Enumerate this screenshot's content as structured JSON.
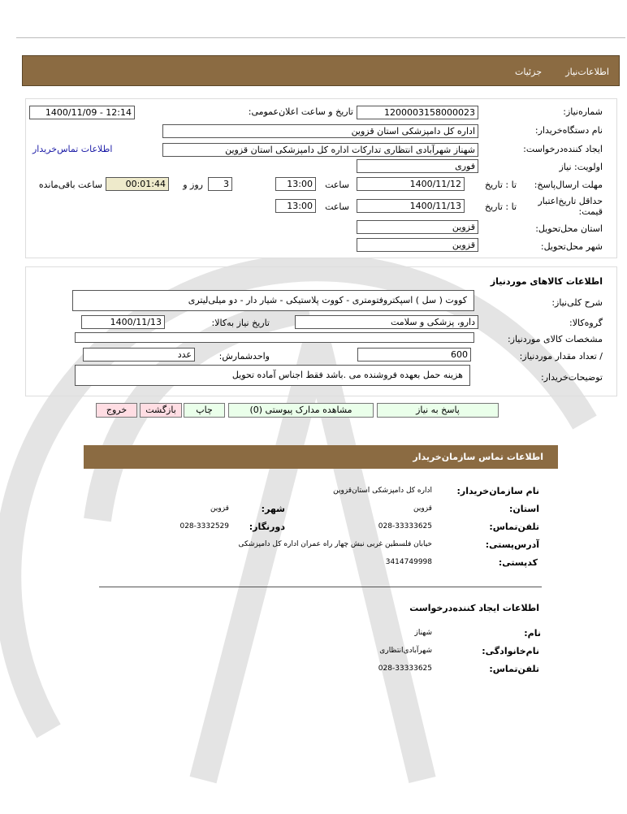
{
  "tabs": [
    "اطلاعات‌نیاز",
    "جزئیات"
  ],
  "need": {
    "number_label": "شماره‌نیاز:",
    "number": "1200003158000023",
    "announce_label": "تاریخ و ساعت اعلان‌عمومی:",
    "announce": "1400/11/09 - 12:14",
    "buyer_label": "نام دستگاه‌خریدار:",
    "buyer": "اداره کل دامپزشکی استان قزوین",
    "creator_label": "ایجاد کننده‌درخواست:",
    "creator": "شهناز شهرآبادی انتظاری تدارکات اداره کل دامپزشکی استان قزوین",
    "contact_link": "اطلاعات تماس‌خریدار",
    "priority_label": "اولویت: نیاز",
    "priority": "فوری",
    "deadline_label": "مهلت ارسال‌پاسخ:",
    "to_date": "تا : تاریخ",
    "deadline_date": "1400/11/12",
    "time_label": "ساعت",
    "deadline_time": "13:00",
    "days": "3",
    "days_label": "روز و",
    "remaining": "00:01:44",
    "remaining_label": "ساعت باقی‌مانده",
    "validity_label": "حداقل تاریخ‌اعتبار قیمت:",
    "validity_date": "1400/11/13",
    "validity_time": "13:00",
    "province_label": "استان محل‌تحویل:",
    "province": "قزوین",
    "city_label": "شهر محل‌تحویل:",
    "city": "قزوین"
  },
  "goods": {
    "title": "اطلاعات کالاهای موردنیاز",
    "desc_label": "شرح کلی‌نیاز:",
    "desc": "کووت ( سل ) اسپکتروفتومتری - کووت پلاستیکی - شیار دار - دو میلی‌لیتری",
    "group_label": "گروه‌کالا:",
    "group": "دارو، پزشکی و سلامت",
    "need_date_label": "تاریخ نیاز به‌کالا:",
    "need_date": "1400/11/13",
    "spec_label": "مشخصات کالای مورد‌نیاز:",
    "spec": "",
    "qty_label": "/ تعداد مقدار مورد‌نیاز:",
    "qty": "600",
    "unit_label": "واحد‌شمارش:",
    "unit": "عدد",
    "notes_label": "توضیحات‌خریدار:",
    "notes": "هزینه حمل بعهده فروشنده می .باشد فقط اجناس آماده تحویل"
  },
  "buttons": {
    "reply": "پاسخ به نیاز",
    "docs": "مشاهده مدارک پیوستی (0)",
    "print": "چاپ",
    "back": "بازگشت",
    "exit": "خروج"
  },
  "contact": {
    "title": "اطلاعات  تماس سازمان‌خریدار",
    "org_label": "نام سازمان‌خریدار:",
    "org": "اداره کل دامپزشکی استان‌قزوین",
    "province_label": "استان:",
    "province": "قزوین",
    "city_label": "شهر:",
    "city": "قزوین",
    "phone_label": "تلفن‌تماس:",
    "phone": "028-33333625",
    "fax_label": "دورنگار:",
    "fax": "028-3332529",
    "address_label": "آدرس‌پستی:",
    "address": "خیابان فلسطین غربی نبش چهار راه عمران اداره کل دامپزشکی",
    "postal_label": "کد‌پستی:",
    "postal": "3414749998",
    "creator_title": "اطلاعات ایجاد کننده‌درخواست",
    "name_label": "نام:",
    "name": "شهناز",
    "family_label": "نام‌خانوادگی:",
    "family": "شهرآبادی‌انتظاری",
    "cphone_label": "تلفن‌تماس:",
    "cphone": "028-33333625"
  },
  "colors": {
    "header": "#8b6b42",
    "timer": "#eeeacb",
    "green_btn": "#eaffea",
    "red_btn": "#ffdde3",
    "link": "#1a1aa6"
  }
}
